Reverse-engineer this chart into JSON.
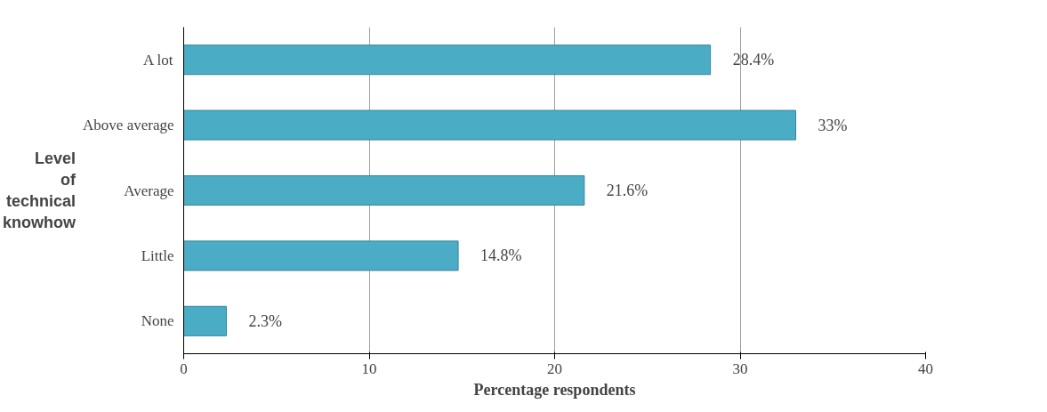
{
  "chart_data": {
    "type": "bar",
    "orientation": "horizontal",
    "xlabel": "Percentage respondents",
    "ylabel": "Level of technical knowhow",
    "categories": [
      "A lot",
      "Above average",
      "Average",
      "Little",
      "None"
    ],
    "values": [
      28.4,
      33,
      21.6,
      14.8,
      2.3
    ],
    "value_labels": [
      "28.4%",
      "33%",
      "21.6%",
      "14.8%",
      "2.3%"
    ],
    "color": "#4bacc6",
    "xlim": [
      0,
      40
    ],
    "xticks": [
      0,
      10,
      20,
      30,
      40
    ],
    "grid": "x"
  }
}
